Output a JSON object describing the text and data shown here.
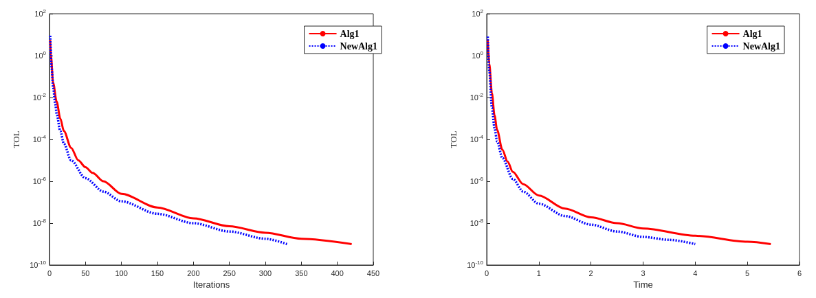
{
  "chart_data": [
    {
      "type": "line",
      "xlabel": "Iterations",
      "ylabel": "TOL",
      "log": "y",
      "grid": false,
      "legend": "top right",
      "marker": "none",
      "xlim": [
        0,
        450
      ],
      "xticks": [
        0,
        50,
        100,
        150,
        200,
        250,
        300,
        350,
        400,
        450
      ],
      "ylim": [
        1e-10,
        100
      ],
      "yticks": [
        {
          "value": 1e-10,
          "label": "10$^{-10}$"
        },
        {
          "value": 1e-08,
          "label": "10$^{-8}$"
        },
        {
          "value": 1e-06,
          "label": "10$^{-6}$"
        },
        {
          "value": 0.0001,
          "label": "10$^{-4}$"
        },
        {
          "value": 0.01,
          "label": "10$^{-2}$"
        },
        {
          "value": 1,
          "label": "10$^{0}$"
        },
        {
          "value": 100,
          "label": "10$^{2}$"
        }
      ],
      "series": [
        {
          "name": "Alg1",
          "color": "#ff0000",
          "line_style": "solid",
          "x": [
            1,
            2,
            5,
            10,
            15,
            20,
            30,
            40,
            50,
            60,
            75,
            100,
            150,
            200,
            250,
            300,
            350,
            420
          ],
          "values": [
            5.6,
            1,
            0.052,
            0.0063,
            0.001,
            0.00025,
            4e-05,
            1e-05,
            4.7e-06,
            2.5e-06,
            1e-06,
            2.5e-07,
            5.6e-08,
            1.7e-08,
            7.1e-09,
            3.5e-09,
            1.8e-09,
            1e-09
          ]
        },
        {
          "name": "NewAlg1",
          "color": "#0000ff",
          "line_style": "dotted",
          "x": [
            1,
            3,
            5,
            8,
            10,
            15,
            20,
            30,
            50,
            75,
            100,
            150,
            200,
            250,
            300,
            330
          ],
          "values": [
            8.9,
            0.26,
            0.032,
            0.005,
            0.0016,
            0.00025,
            6.3e-05,
            1e-05,
            1.4e-06,
            3.2e-07,
            1.1e-07,
            2.8e-08,
            1e-08,
            4e-09,
            1.8e-09,
            1e-09
          ]
        }
      ]
    },
    {
      "type": "line",
      "xlabel": "Time",
      "ylabel": "TOL",
      "log": "y",
      "grid": false,
      "legend": "top right",
      "marker": "none",
      "xlim": [
        0,
        6
      ],
      "xticks": [
        0,
        1,
        2,
        3,
        4,
        5,
        6
      ],
      "ylim": [
        1e-10,
        100
      ],
      "yticks": [
        {
          "value": 1e-10,
          "label": "10$^{-10}$"
        },
        {
          "value": 1e-08,
          "label": "10$^{-8}$"
        },
        {
          "value": 1e-06,
          "label": "10$^{-6}$"
        },
        {
          "value": 0.0001,
          "label": "10$^{-4}$"
        },
        {
          "value": 0.01,
          "label": "10$^{-2}$"
        },
        {
          "value": 1,
          "label": "10$^{0}$"
        },
        {
          "value": 100,
          "label": "10$^{2}$"
        }
      ],
      "series": [
        {
          "name": "Alg1",
          "color": "#ff0000",
          "line_style": "solid",
          "x": [
            0.02,
            0.05,
            0.1,
            0.15,
            0.2,
            0.3,
            0.4,
            0.5,
            0.7,
            1,
            1.5,
            2,
            2.5,
            3,
            4,
            5,
            5.45
          ],
          "values": [
            5.9,
            0.4,
            0.016,
            0.0014,
            0.00028,
            3.2e-05,
            8.7e-06,
            2.8e-06,
            7.2e-07,
            2.1e-07,
            5e-08,
            1.9e-08,
            1e-08,
            5.6e-09,
            2.5e-09,
            1.3e-09,
            1e-09
          ]
        },
        {
          "name": "NewAlg1",
          "color": "#0000ff",
          "line_style": "dotted",
          "x": [
            0.02,
            0.05,
            0.1,
            0.15,
            0.2,
            0.3,
            0.5,
            0.7,
            1,
            1.5,
            2,
            2.5,
            3,
            3.5,
            4
          ],
          "values": [
            8.1,
            0.18,
            0.0032,
            0.00035,
            7.9e-05,
            1.3e-05,
            1.3e-06,
            3.2e-07,
            8.5e-08,
            2.2e-08,
            8.5e-09,
            4e-09,
            2.2e-09,
            1.6e-09,
            1e-09
          ]
        }
      ]
    }
  ]
}
